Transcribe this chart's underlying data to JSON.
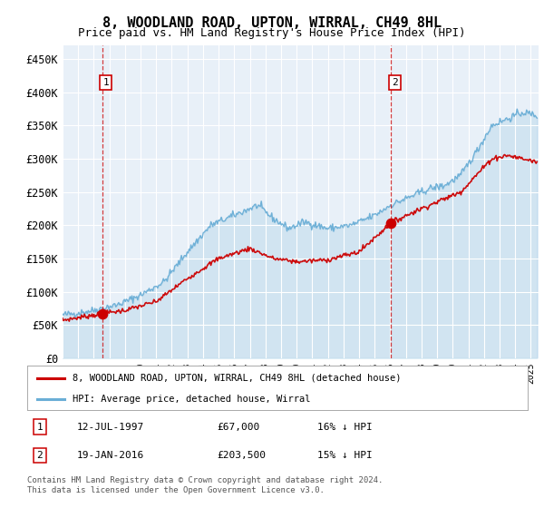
{
  "title": "8, WOODLAND ROAD, UPTON, WIRRAL, CH49 8HL",
  "subtitle": "Price paid vs. HM Land Registry's House Price Index (HPI)",
  "sale1_date": 1997.53,
  "sale1_price": 67000,
  "sale2_date": 2016.05,
  "sale2_price": 203500,
  "ylim": [
    0,
    470000
  ],
  "xlim": [
    1995.0,
    2025.5
  ],
  "yticks": [
    0,
    50000,
    100000,
    150000,
    200000,
    250000,
    300000,
    350000,
    400000,
    450000
  ],
  "ytick_labels": [
    "£0",
    "£50K",
    "£100K",
    "£150K",
    "£200K",
    "£250K",
    "£300K",
    "£350K",
    "£400K",
    "£450K"
  ],
  "hpi_color": "#6aaed6",
  "sale_color": "#cc0000",
  "background_color": "#e8f0f8",
  "grid_color": "#ffffff",
  "legend_sale_label": "8, WOODLAND ROAD, UPTON, WIRRAL, CH49 8HL (detached house)",
  "legend_hpi_label": "HPI: Average price, detached house, Wirral",
  "note1_label": "1",
  "note1_date": "12-JUL-1997",
  "note1_price": "£67,000",
  "note1_hpi": "16% ↓ HPI",
  "note2_label": "2",
  "note2_date": "19-JAN-2016",
  "note2_price": "£203,500",
  "note2_hpi": "15% ↓ HPI",
  "footer": "Contains HM Land Registry data © Crown copyright and database right 2024.\nThis data is licensed under the Open Government Licence v3.0.",
  "hpi_anchors_t": [
    1995.0,
    1996.0,
    1997.0,
    1997.5,
    1998.5,
    2000.0,
    2001.5,
    2003.0,
    2004.5,
    2005.5,
    2007.5,
    2008.5,
    2009.5,
    2010.5,
    2012.0,
    2013.5,
    2015.0,
    2016.0,
    2017.5,
    2018.5,
    2019.5,
    2020.5,
    2021.5,
    2022.5,
    2023.5,
    2024.5,
    2025.4
  ],
  "hpi_anchors_p": [
    65000,
    68000,
    72000,
    75000,
    80000,
    95000,
    115000,
    160000,
    200000,
    210000,
    230000,
    210000,
    195000,
    205000,
    195000,
    200000,
    215000,
    230000,
    245000,
    255000,
    260000,
    275000,
    310000,
    350000,
    360000,
    370000,
    365000
  ],
  "sale_anchors_t": [
    1995.0,
    1997.53,
    1999.0,
    2001.0,
    2003.0,
    2005.0,
    2007.0,
    2008.5,
    2010.0,
    2012.0,
    2014.0,
    2016.05,
    2017.5,
    2019.0,
    2020.5,
    2021.5,
    2022.5,
    2023.5,
    2024.5,
    2025.4
  ],
  "sale_anchors_p": [
    57000,
    67000,
    72000,
    85000,
    120000,
    150000,
    165000,
    150000,
    145000,
    148000,
    160000,
    203500,
    220000,
    235000,
    250000,
    275000,
    300000,
    305000,
    300000,
    295000
  ]
}
